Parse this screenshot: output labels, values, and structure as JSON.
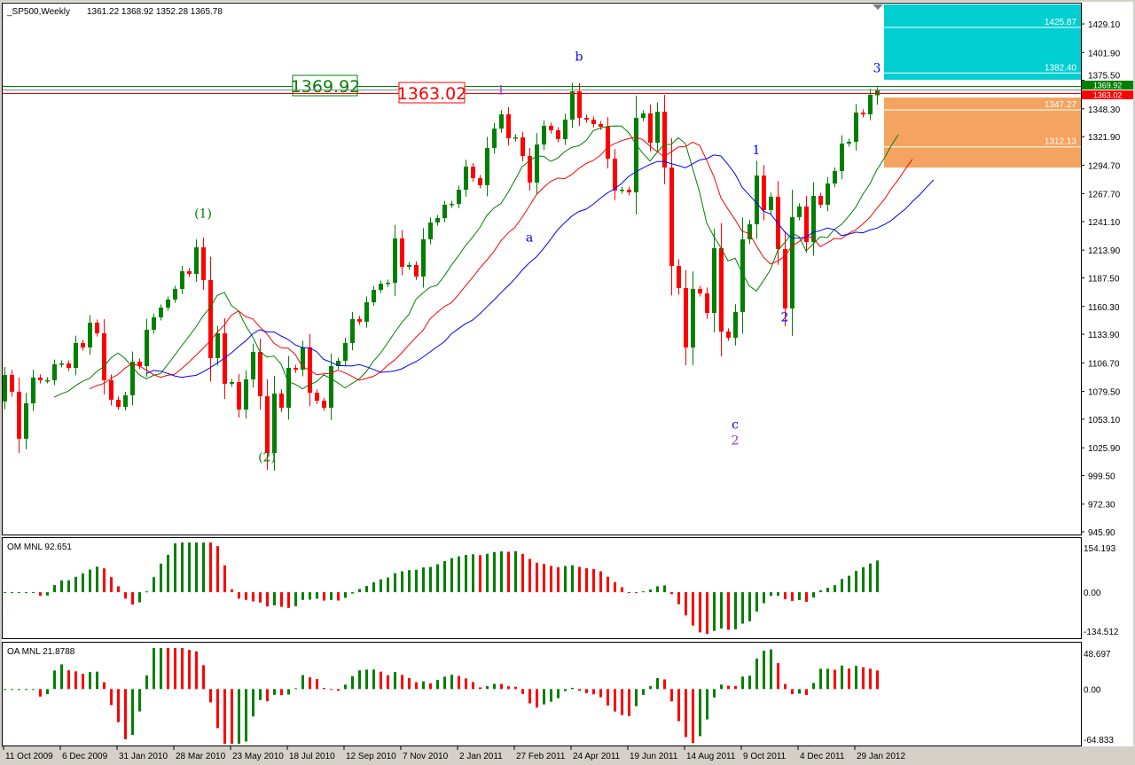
{
  "header": {
    "symbol_timeframe": "_SP500,Weekly",
    "ohlc_text": "1361.22 1368.92 1352.28 1365.78"
  },
  "colors": {
    "bull": "#008000",
    "bear": "#ff0000",
    "lips": "#008000",
    "teeth": "#ff0000",
    "jaw": "#0000ff",
    "cyan_zone": "#00ced1",
    "orange_zone": "#f4a460",
    "grey_line": "#778899"
  },
  "chart_data": {
    "type": "candlestick",
    "title": "_SP500,Weekly",
    "y_axis_ticks": [
      "1429.10",
      "1401.90",
      "1375.50",
      "1348.30",
      "1321.90",
      "1294.70",
      "1267.70",
      "1241.10",
      "1213.90",
      "1187.50",
      "1160.30",
      "1133.90",
      "1106.70",
      "1079.50",
      "1053.10",
      "1025.90",
      "999.50",
      "972.30",
      "945.90"
    ],
    "ylim": [
      945.9,
      1429.1
    ],
    "x_axis_ticks": [
      "11 Oct 2009",
      "6 Dec 2009",
      "31 Jan 2010",
      "28 Mar 2010",
      "23 May 2010",
      "18 Jul 2010",
      "12 Sep 2010",
      "7 Nov 2010",
      "2 Jan 2011",
      "27 Feb 2011",
      "24 Apr 2011",
      "19 Jun 2011",
      "14 Aug 2011",
      "9 Oct 2011",
      "4 Dec 2011",
      "29 Jan 2012"
    ],
    "x_tick_every_bars": 8,
    "closes": [
      1095.2,
      1079.2,
      1034.5,
      1068.2,
      1092.7,
      1090.1,
      1090.1,
      1105.3,
      1106.1,
      1101.9,
      1125.5,
      1121.3,
      1144.9,
      1134.8,
      1090.1,
      1071.6,
      1064.8,
      1075.8,
      1107.8,
      1103.6,
      1138.2,
      1150.0,
      1159.3,
      1166.9,
      1177.0,
      1193.9,
      1191.3,
      1216.6,
      1185.4,
      1111.2,
      1134.8,
      1086.8,
      1088.4,
      1062.3,
      1091.0,
      1117.1,
      1074.9,
      1021.0,
      1077.5,
      1064.0,
      1101.9,
      1100.2,
      1121.3,
      1078.3,
      1070.7,
      1064.0,
      1103.6,
      1108.7,
      1125.5,
      1148.3,
      1145.8,
      1164.3,
      1176.1,
      1182.0,
      1182.9,
      1225.0,
      1198.1,
      1199.8,
      1188.8,
      1224.2,
      1240.2,
      1244.4,
      1257.1,
      1257.9,
      1271.4,
      1293.4,
      1282.4,
      1275.7,
      1311.1,
      1329.6,
      1343.1,
      1320.3,
      1321.2,
      1303.5,
      1278.2,
      1314.4,
      1332.2,
      1327.9,
      1319.5,
      1338.1,
      1365.0,
      1339.7,
      1338.1,
      1333.8,
      1331.3,
      1300.9,
      1270.6,
      1271.4,
      1268.9,
      1339.7,
      1344.0,
      1316.1,
      1345.6,
      1292.5,
      1198.9,
      1177.8,
      1121.3,
      1177.0,
      1172.8,
      1154.2,
      1215.8,
      1136.5,
      1130.6,
      1155.1,
      1224.2,
      1238.5,
      1284.9,
      1252.0,
      1264.7,
      1214.9,
      1158.4,
      1245.3,
      1255.4,
      1221.7,
      1265.5,
      1257.1,
      1277.3,
      1289.1,
      1315.3,
      1317.0,
      1344.8,
      1343.1,
      1361.7,
      1365.78
    ],
    "first_open": 1070.0,
    "last_bar": {
      "open": 1361.22,
      "high": 1368.92,
      "low": 1352.28,
      "close": 1365.78
    },
    "moving_averages": [
      {
        "name": "lips",
        "period": 5,
        "shift": 3
      },
      {
        "name": "teeth",
        "period": 8,
        "shift": 5
      },
      {
        "name": "jaw",
        "period": 13,
        "shift": 8
      }
    ],
    "hlines": [
      {
        "price": 1369.92,
        "label": "1369.92",
        "color": "#008000"
      },
      {
        "price": 1366.5,
        "label": "",
        "color": "#778899"
      },
      {
        "price": 1363.02,
        "label": "1363.02",
        "color": "#ff0000"
      }
    ],
    "zones": [
      {
        "name": "cyan",
        "top": 1447.6,
        "bottom": 1376.0,
        "levels": [
          "1425.87",
          "1382.40"
        ]
      },
      {
        "name": "orange",
        "top": 1359.1,
        "bottom": 1292.5,
        "levels": [
          "1347.27",
          "1312.13"
        ]
      }
    ],
    "wave_labels": [
      {
        "text": "(1)",
        "bar": 28,
        "price": 1245,
        "color": "#008000"
      },
      {
        "text": "(2)",
        "bar": 37,
        "price": 1013,
        "color": "#008000"
      },
      {
        "text": "1",
        "bar": 70,
        "price": 1362,
        "color": "#9932cc"
      },
      {
        "text": "a",
        "bar": 74,
        "price": 1222,
        "color": "#0000ff"
      },
      {
        "text": "b",
        "bar": 81,
        "price": 1394,
        "color": "#0000ff"
      },
      {
        "text": "c",
        "bar": 103,
        "price": 1044,
        "color": "#0000ff"
      },
      {
        "text": "2",
        "bar": 103,
        "price": 1029,
        "color": "#9932cc"
      },
      {
        "text": "1",
        "bar": 106,
        "price": 1305,
        "color": "#0000ff"
      },
      {
        "text": "2",
        "bar": 110,
        "price": 1146,
        "color": "#0000ff"
      },
      {
        "text": "3",
        "bar": 123,
        "price": 1383,
        "color": "#0000ff"
      }
    ],
    "indicators": [
      {
        "label": "OM MNL 92.651",
        "ylim": [
          -134.512,
          154.193
        ],
        "ticks": [
          "154.193",
          "0.00",
          "-134.512"
        ],
        "type": "histogram"
      },
      {
        "label": "OA MNL 21.8788",
        "ylim": [
          -64.833,
          48.697
        ],
        "ticks": [
          "48.697",
          "0.00",
          "-64.833"
        ],
        "type": "histogram"
      }
    ]
  }
}
